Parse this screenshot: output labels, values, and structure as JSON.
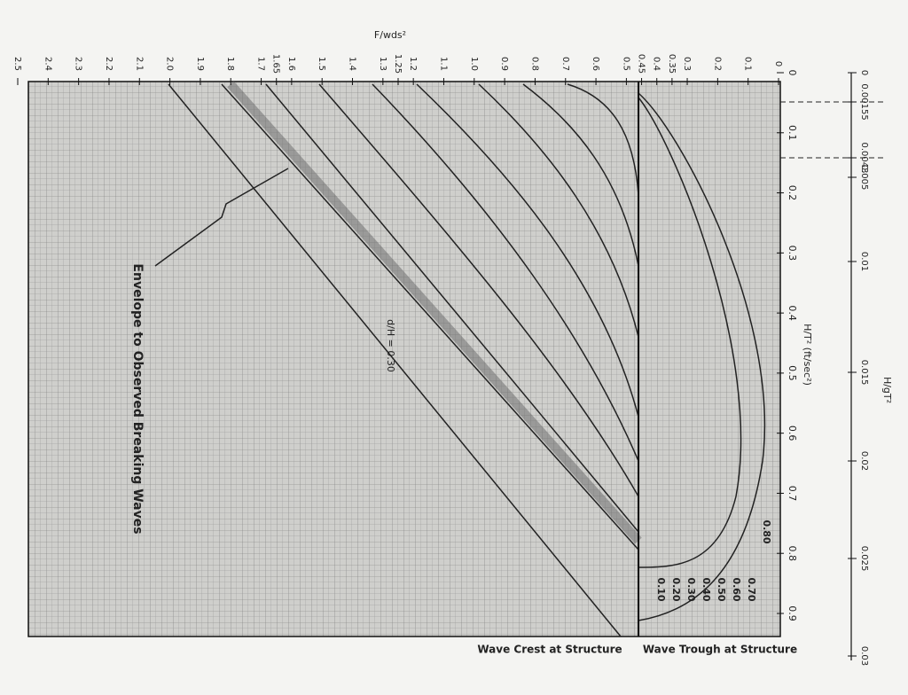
{
  "top_axis": {
    "title": "F/wds²",
    "ticks": [
      "0",
      "0.1",
      "0.2",
      "0.3",
      "0.35",
      "0.4",
      "0.45",
      "0.5",
      "0.6",
      "0.7",
      "0.8",
      "0.9",
      "1.0",
      "1.1",
      "1.2",
      "1.25",
      "1.3",
      "1.4",
      "1.5",
      "1.6",
      "1.65",
      "1.7",
      "1.8",
      "1.9",
      "2.0",
      "2.1",
      "2.2",
      "2.3",
      "2.4",
      "2.5"
    ]
  },
  "inner_axis": {
    "title": "H/T² (ft/sec²)",
    "ticks": [
      "0",
      "0.1",
      "0.2",
      "0.3",
      "0.4",
      "0.5",
      "0.6",
      "0.7",
      "0.8",
      "0.9"
    ]
  },
  "outer_axis": {
    "title": "H/gT²",
    "ticks": [
      "0",
      "0.00155",
      "0.0043",
      "0.005",
      "0.01",
      "0.015",
      "0.02",
      "0.025",
      "0.03"
    ]
  },
  "annotations": {
    "envelope": "Envelope to Observed Breaking Waves",
    "crest": "Wave Crest at Structure",
    "trough": "Wave Trough at Structure",
    "ratio": "d/H = 0.30"
  },
  "curve_labels": [
    "0.10",
    "0.20",
    "0.30",
    "0.40",
    "0.50",
    "0.60",
    "0.70",
    "0.80"
  ]
}
